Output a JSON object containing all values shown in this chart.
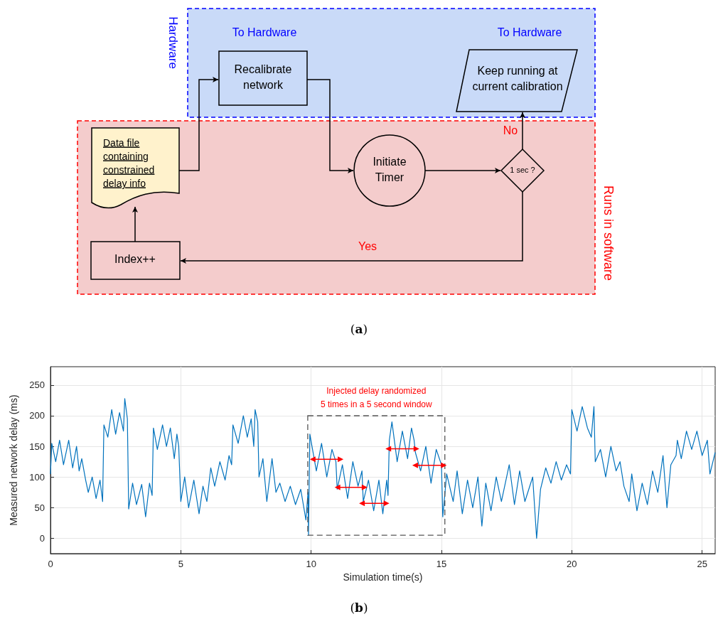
{
  "chart_data": [
    {
      "type": "other",
      "annotations": [
        "Hardware",
        "To Hardware",
        "Recalibrate\nnetwork",
        "To Hardware",
        "Keep running at\ncurrent calibration",
        "Runs in software",
        "Data file\ncontaining\nconstrained\ndelay info",
        "Initiate\nTimer",
        "1 sec ?",
        "No",
        "Yes",
        "Index++",
        "(a)"
      ]
    },
    {
      "type": "line",
      "xlabel": "Simulation time(s)",
      "ylabel": "Measured network delay (ms)",
      "xlim": [
        0,
        25.5
      ],
      "xticks": [
        0,
        5,
        10,
        15,
        20,
        25
      ],
      "ylim": [
        -25,
        280
      ],
      "yticks": [
        0,
        50,
        100,
        150,
        200,
        250
      ],
      "grid": true,
      "annotations": [
        "Injected delay randomized\n5 times in a 5 second window",
        "(b)"
      ],
      "series": [
        {
          "color": "#0072bd",
          "x": [
            0,
            0.05,
            0.2,
            0.35,
            0.5,
            0.7,
            0.85,
            1,
            1.1,
            1.2,
            1.35,
            1.45,
            1.6,
            1.75,
            1.9,
            2.0,
            2.05,
            2.2,
            2.35,
            2.5,
            2.65,
            2.8,
            2.85,
            2.95,
            3.0,
            3.15,
            3.3,
            3.5,
            3.65,
            3.8,
            3.9,
            3.95,
            4.1,
            4.3,
            4.45,
            4.6,
            4.75,
            4.85,
            4.92,
            5.0,
            5.15,
            5.3,
            5.5,
            5.7,
            5.85,
            6.0,
            6.15,
            6.3,
            6.5,
            6.7,
            6.85,
            6.95,
            7.0,
            7.2,
            7.4,
            7.55,
            7.7,
            7.8,
            7.85,
            7.95,
            8.0,
            8.15,
            8.3,
            8.5,
            8.65,
            8.8,
            9.0,
            9.2,
            9.4,
            9.6,
            9.8,
            9.88,
            9.9,
            9.95,
            10.2,
            10.4,
            10.6,
            10.8,
            10.95,
            11.0,
            11.2,
            11.4,
            11.6,
            11.8,
            11.95,
            12.0,
            12.2,
            12.4,
            12.6,
            12.75,
            12.9,
            12.95,
            13.0,
            13.1,
            13.3,
            13.5,
            13.7,
            13.85,
            13.95,
            14.0,
            14.2,
            14.4,
            14.6,
            14.8,
            15.0,
            15.05,
            15.2,
            15.45,
            15.6,
            15.8,
            16.0,
            16.2,
            16.4,
            16.55,
            16.7,
            16.9,
            17.1,
            17.3,
            17.6,
            17.8,
            18.0,
            18.2,
            18.5,
            18.65,
            18.8,
            19.0,
            19.2,
            19.4,
            19.6,
            19.8,
            19.95,
            20.0,
            20.2,
            20.4,
            20.6,
            20.75,
            20.85,
            20.9,
            21.1,
            21.3,
            21.5,
            21.7,
            21.85,
            22.0,
            22.2,
            22.3,
            22.5,
            22.7,
            22.9,
            23.1,
            23.3,
            23.5,
            23.65,
            23.8,
            24.0,
            24.05,
            24.2,
            24.4,
            24.6,
            24.8,
            25.0,
            25.2,
            25.3,
            25.5
          ],
          "values": [
            105,
            155,
            125,
            160,
            120,
            160,
            115,
            150,
            110,
            130,
            95,
            75,
            100,
            65,
            95,
            60,
            185,
            165,
            210,
            170,
            205,
            175,
            228,
            195,
            48,
            90,
            55,
            88,
            35,
            90,
            70,
            180,
            145,
            185,
            150,
            180,
            130,
            170,
            150,
            60,
            100,
            50,
            95,
            40,
            85,
            60,
            115,
            85,
            125,
            95,
            135,
            120,
            185,
            155,
            200,
            165,
            195,
            150,
            210,
            190,
            100,
            130,
            60,
            130,
            75,
            90,
            60,
            85,
            55,
            80,
            30,
            75,
            5,
            170,
            110,
            155,
            100,
            145,
            125,
            80,
            120,
            65,
            125,
            85,
            110,
            60,
            95,
            45,
            95,
            40,
            95,
            70,
            160,
            190,
            125,
            175,
            130,
            180,
            160,
            140,
            110,
            150,
            90,
            145,
            120,
            35,
            105,
            60,
            110,
            40,
            95,
            50,
            100,
            20,
            90,
            45,
            100,
            60,
            120,
            55,
            110,
            60,
            100,
            0,
            80,
            115,
            90,
            125,
            95,
            120,
            105,
            210,
            175,
            215,
            180,
            165,
            215,
            125,
            145,
            100,
            150,
            110,
            125,
            85,
            60,
            105,
            45,
            90,
            55,
            110,
            75,
            135,
            50,
            120,
            135,
            160,
            130,
            175,
            145,
            175,
            135,
            160,
            105,
            140
          ]
        }
      ]
    }
  ]
}
